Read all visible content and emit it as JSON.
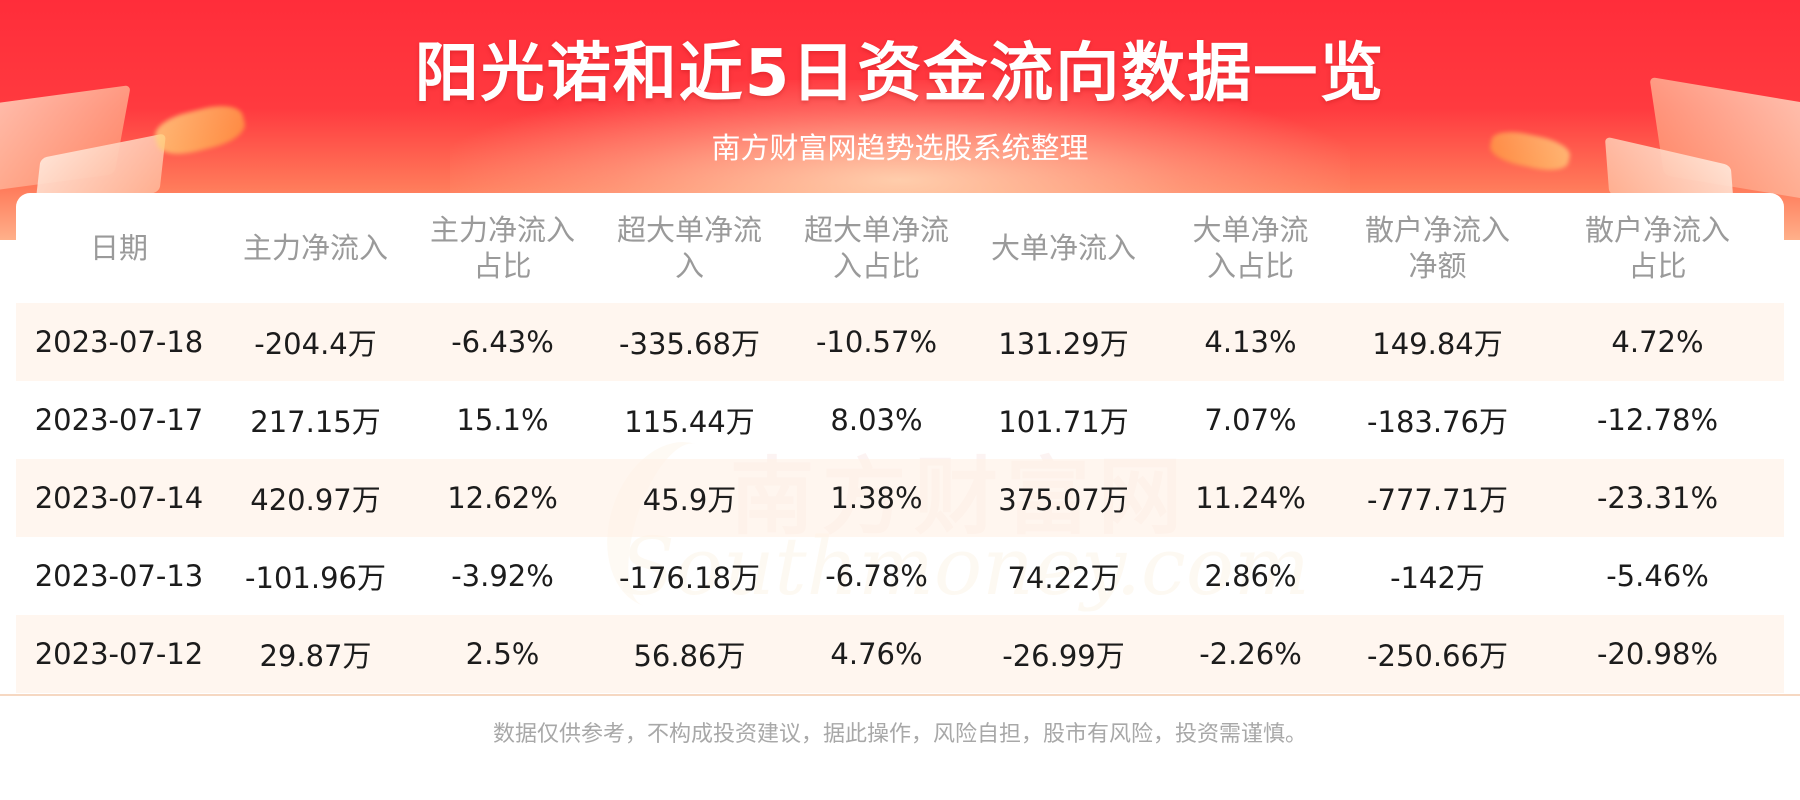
{
  "header": {
    "title": "阳光诺和近5日资金流向数据一览",
    "subtitle": "南方财富网趋势选股系统整理"
  },
  "watermark": {
    "cn": "南方财富网",
    "en": "Southmoney.com"
  },
  "chart_data": {
    "type": "table",
    "columns": [
      "日期",
      "主力净流入",
      "主力净流入占比",
      "超大单净流入",
      "超大单净流入占比",
      "大单净流入",
      "大单净流入占比",
      "散户净流入净额",
      "散户净流入占比"
    ],
    "rows": [
      [
        "2023-07-18",
        "-204.4万",
        "-6.43%",
        "-335.68万",
        "-10.57%",
        "131.29万",
        "4.13%",
        "149.84万",
        "4.72%"
      ],
      [
        "2023-07-17",
        "217.15万",
        "15.1%",
        "115.44万",
        "8.03%",
        "101.71万",
        "7.07%",
        "-183.76万",
        "-12.78%"
      ],
      [
        "2023-07-14",
        "420.97万",
        "12.62%",
        "45.9万",
        "1.38%",
        "375.07万",
        "11.24%",
        "-777.71万",
        "-23.31%"
      ],
      [
        "2023-07-13",
        "-101.96万",
        "-3.92%",
        "-176.18万",
        "-6.78%",
        "74.22万",
        "2.86%",
        "-142万",
        "-5.46%"
      ],
      [
        "2023-07-12",
        "29.87万",
        "2.5%",
        "56.86万",
        "4.76%",
        "-26.99万",
        "-2.26%",
        "-250.66万",
        "-20.98%"
      ]
    ]
  },
  "footer": {
    "disclaimer": "数据仅供参考，不构成投资建议，据此操作，风险自担，股市有风险，投资需谨慎。"
  },
  "colors": {
    "banner_red": "#ff2d3a",
    "header_text": "#9a9a9a",
    "row_stripe": "#fff5ec",
    "body_text": "#1c1c1c"
  }
}
